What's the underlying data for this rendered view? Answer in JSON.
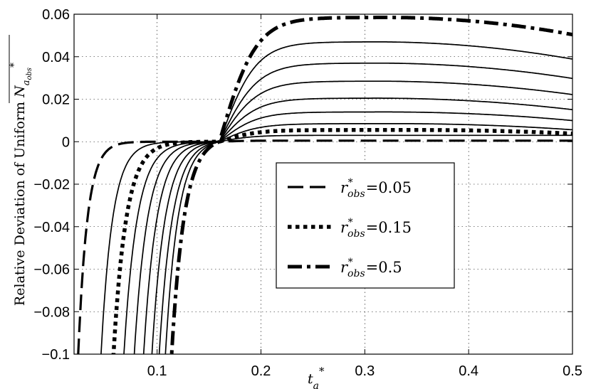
{
  "chart_data": {
    "type": "line",
    "title": "",
    "xlabel": "t_a^*",
    "ylabel": "Relative Deviation of Uniform N^*_{a_obs}",
    "xlim": [
      0.02,
      0.5
    ],
    "ylim": [
      -0.1,
      0.06
    ],
    "grid": "dotted",
    "x_ticks": [
      "0.1",
      "0.2",
      "0.3",
      "0.4",
      "0.5"
    ],
    "y_ticks": [
      "0.06",
      "0.04",
      "0.02",
      "0",
      "−0.02",
      "−0.04",
      "−0.06",
      "−0.08",
      "−0.1"
    ],
    "legend": {
      "position": "center-right",
      "entries": [
        {
          "symbol": "r*obs",
          "value": "=0.05",
          "style": "dashed"
        },
        {
          "symbol": "r*obs",
          "value": "=0.15",
          "style": "dotted"
        },
        {
          "symbol": "r*obs",
          "value": "=0.5",
          "style": "dash-dot"
        }
      ]
    },
    "series": [
      {
        "name": "r*obs =0.05",
        "style": "dashed",
        "width": 3.2,
        "x0": 0.024,
        "a": 0.016,
        "plateau": 0.0005,
        "peak_x": 0.5,
        "decay": 0.0
      },
      {
        "style": "solid",
        "width": 1.7,
        "x0": 0.046,
        "a": 0.02,
        "plateau": 0.003,
        "peak_x": 0.4,
        "decay": 0.0
      },
      {
        "name": "r*obs =0.15",
        "style": "dotted",
        "width": 5.5,
        "x0": 0.058,
        "a": 0.022,
        "plateau": 0.0055,
        "peak_x": 0.35,
        "decay": 0.006
      },
      {
        "style": "solid",
        "width": 1.7,
        "x0": 0.068,
        "a": 0.023,
        "plateau": 0.0085,
        "peak_x": 0.33,
        "decay": 0.008
      },
      {
        "style": "solid",
        "width": 1.7,
        "x0": 0.078,
        "a": 0.023,
        "plateau": 0.014,
        "peak_x": 0.32,
        "decay": 0.01
      },
      {
        "style": "solid",
        "width": 1.7,
        "x0": 0.087,
        "a": 0.023,
        "plateau": 0.0205,
        "peak_x": 0.31,
        "decay": 0.012
      },
      {
        "style": "solid",
        "width": 1.7,
        "x0": 0.095,
        "a": 0.023,
        "plateau": 0.0285,
        "peak_x": 0.31,
        "decay": 0.014
      },
      {
        "style": "solid",
        "width": 1.7,
        "x0": 0.102,
        "a": 0.023,
        "plateau": 0.037,
        "peak_x": 0.31,
        "decay": 0.016
      },
      {
        "style": "solid",
        "width": 1.7,
        "x0": 0.108,
        "a": 0.022,
        "plateau": 0.047,
        "peak_x": 0.31,
        "decay": 0.018
      },
      {
        "name": "r*obs =0.5",
        "style": "dash-dot",
        "width": 5.0,
        "x0": 0.114,
        "a": 0.022,
        "plateau": 0.0585,
        "peak_x": 0.32,
        "decay": 0.02
      }
    ],
    "crossing_point": {
      "x": 0.16,
      "y": 0.0
    }
  }
}
